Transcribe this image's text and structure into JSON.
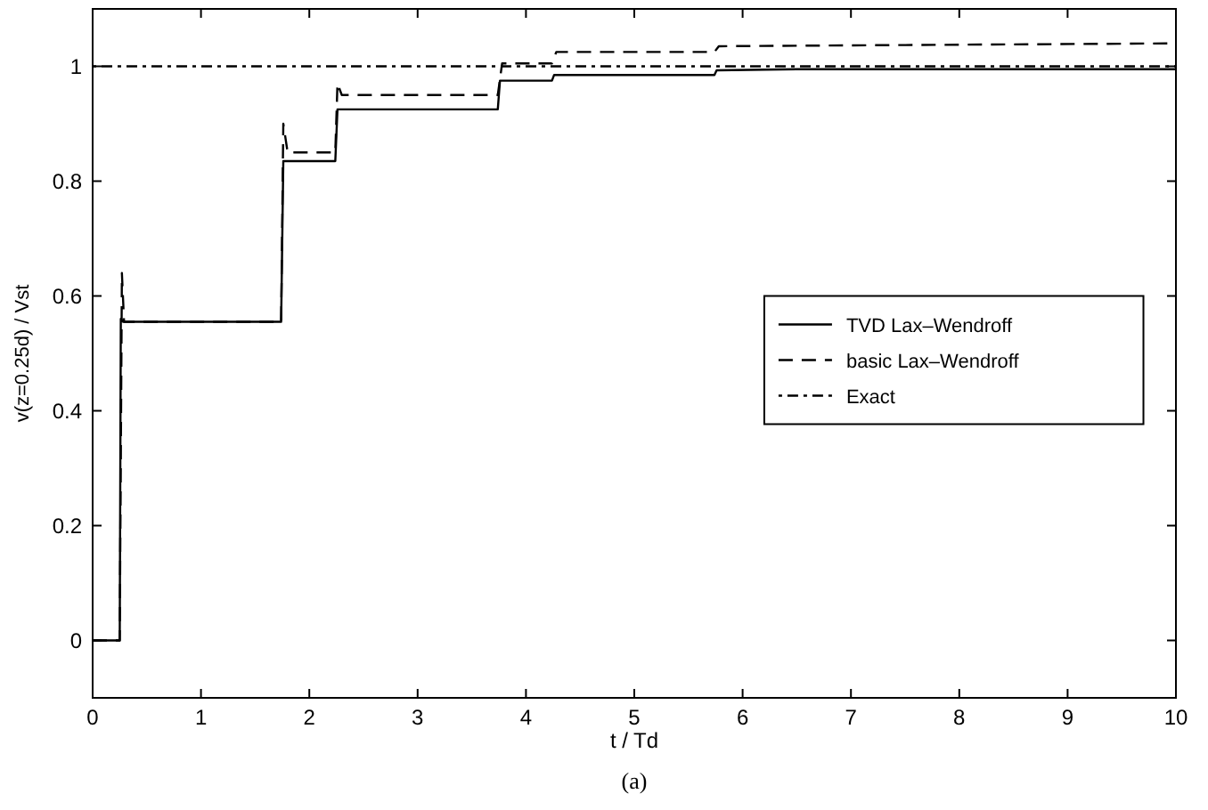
{
  "chart_data": {
    "type": "line",
    "xlabel": "t / Td",
    "ylabel": "v(z=0.25d) / Vst",
    "annotations": [
      "(a)"
    ],
    "xlim": [
      0,
      10
    ],
    "ylim": [
      -0.1,
      1.1
    ],
    "xticks": [
      0,
      1,
      2,
      3,
      4,
      5,
      6,
      7,
      8,
      9,
      10
    ],
    "yticks": [
      0,
      0.2,
      0.4,
      0.6,
      0.8,
      1
    ],
    "legend": "right",
    "grid": false,
    "series": [
      {
        "name": "TVD Lax–Wendroff",
        "color": "#000000",
        "line_style": "solid",
        "x": [
          0,
          0.25,
          0.26,
          0.28,
          1.74,
          1.76,
          2.24,
          2.26,
          3.74,
          3.76,
          4.24,
          4.26,
          5.74,
          5.76,
          6.5,
          10
        ],
        "values": [
          0,
          0,
          0.56,
          0.555,
          0.555,
          0.835,
          0.835,
          0.925,
          0.925,
          0.975,
          0.975,
          0.985,
          0.985,
          0.993,
          0.995,
          0.995
        ]
      },
      {
        "name": "basic Lax–Wendroff",
        "color": "#000000",
        "line_style": "dashed",
        "x": [
          0,
          0.25,
          0.27,
          0.29,
          1.74,
          1.76,
          1.8,
          2.24,
          2.26,
          2.3,
          3.74,
          3.78,
          4.24,
          4.28,
          5.74,
          5.78,
          10
        ],
        "values": [
          0,
          0,
          0.64,
          0.555,
          0.555,
          0.9,
          0.85,
          0.85,
          0.97,
          0.95,
          0.95,
          1.005,
          1.005,
          1.025,
          1.025,
          1.035,
          1.04
        ]
      },
      {
        "name": "Exact",
        "color": "#000000",
        "line_style": "dotted",
        "x": [
          0,
          10
        ],
        "values": [
          1,
          1
        ]
      }
    ]
  }
}
